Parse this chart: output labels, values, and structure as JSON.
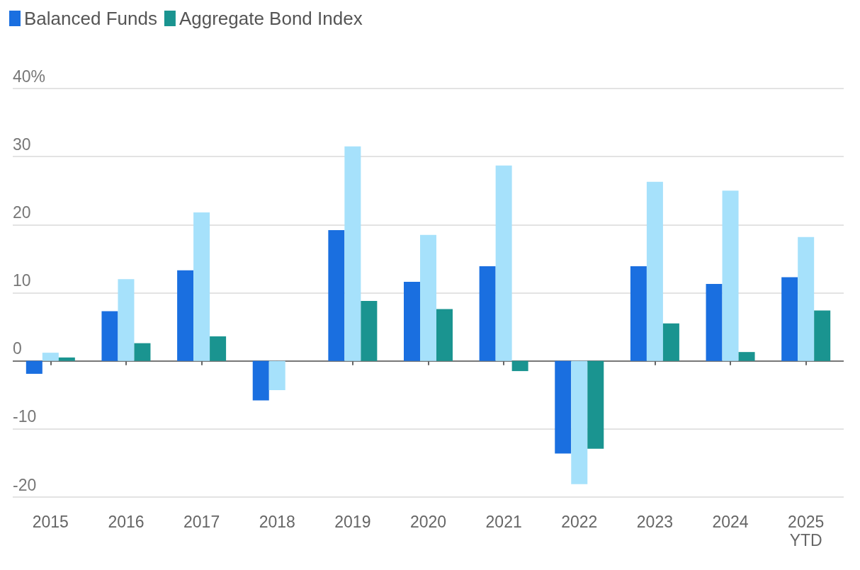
{
  "chart_data": {
    "type": "bar",
    "categories": [
      "2015",
      "2016",
      "2017",
      "2018",
      "2019",
      "2020",
      "2021",
      "2022",
      "2023",
      "2024",
      "2025\nYTD"
    ],
    "series": [
      {
        "name": "Balanced Funds",
        "color": "#1a6fe0",
        "values": [
          -1.9,
          7.3,
          13.3,
          -5.8,
          19.2,
          11.6,
          13.9,
          -13.6,
          13.9,
          11.3,
          12.3
        ]
      },
      {
        "color": "#a6e1fb",
        "values": [
          1.2,
          12.0,
          21.8,
          -4.3,
          31.5,
          18.5,
          28.7,
          -18.1,
          26.3,
          25.0,
          18.2
        ]
      },
      {
        "name": "Aggregate Bond Index",
        "color": "#1a9490",
        "values": [
          0.5,
          2.6,
          3.6,
          0.0,
          8.8,
          7.6,
          -1.5,
          -12.9,
          5.5,
          1.3,
          7.4
        ]
      }
    ],
    "ylim": [
      -20,
      40
    ],
    "yticks": [
      -20,
      -10,
      0,
      10,
      20,
      30,
      {
        "value": 40,
        "label": "40%"
      }
    ],
    "grid": "y",
    "legend": "top left"
  }
}
